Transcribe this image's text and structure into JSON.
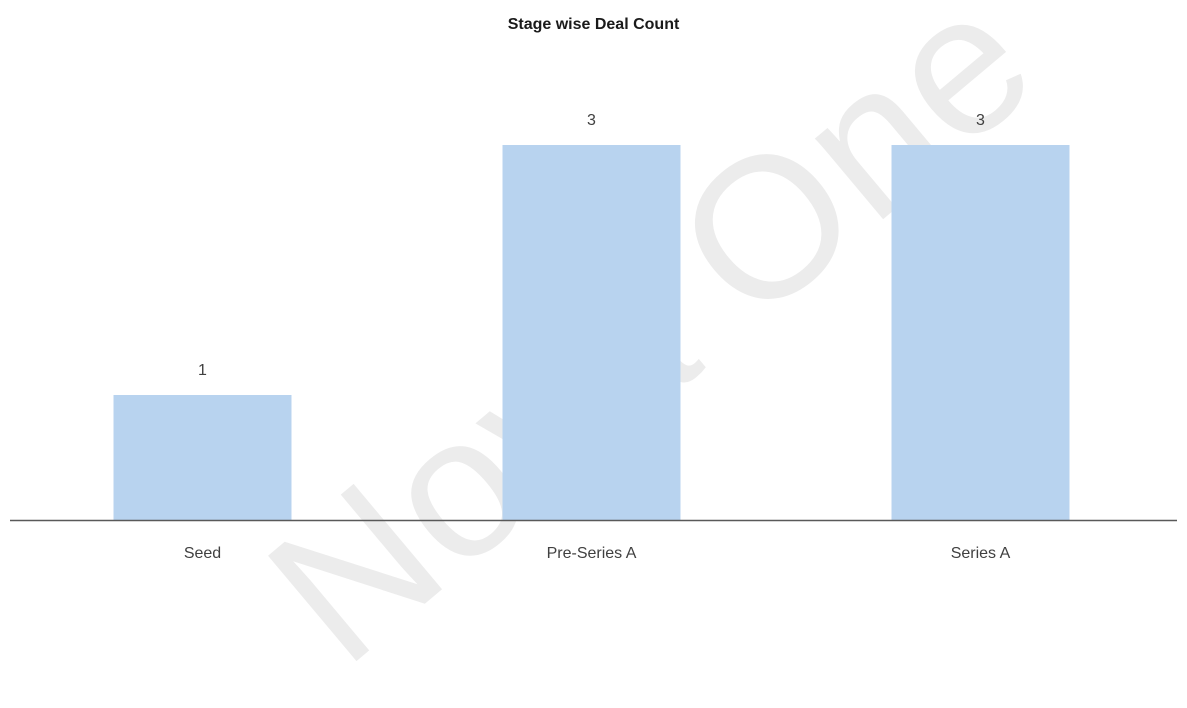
{
  "watermark": "Nova One",
  "chart_data": {
    "type": "bar",
    "title": "Stage wise Deal Count",
    "categories": [
      "Seed",
      "Pre-Series A",
      "Series A"
    ],
    "values": [
      1,
      3,
      3
    ],
    "data_labels": [
      "1",
      "3",
      "3"
    ],
    "xlabel": "",
    "ylabel": "",
    "ylim": [
      0,
      3
    ],
    "grid": false,
    "legend": "none",
    "bar_color": "#b8d3ef",
    "axis_color": "#595959"
  }
}
